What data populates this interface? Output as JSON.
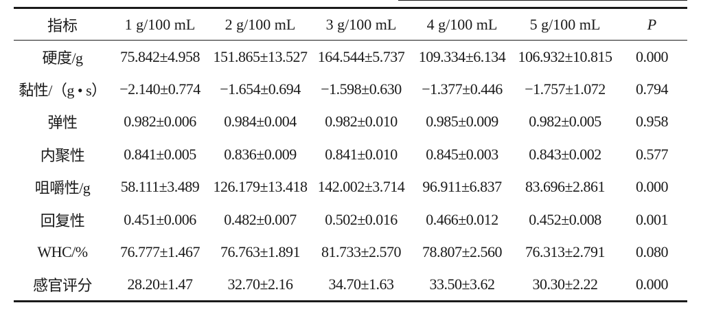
{
  "table": {
    "headers": [
      "指标",
      "1 g/100 mL",
      "2 g/100 mL",
      "3 g/100 mL",
      "4 g/100 mL",
      "5 g/100 mL",
      "P"
    ],
    "rows": [
      [
        "硬度/g",
        "75.842±4.958",
        "151.865±13.527",
        "164.544±5.737",
        "109.334±6.134",
        "106.932±10.815",
        "0.000"
      ],
      [
        "黏性/（g • s）",
        "−2.140±0.774",
        "−1.654±0.694",
        "−1.598±0.630",
        "−1.377±0.446",
        "−1.757±1.072",
        "0.794"
      ],
      [
        "弹性",
        "0.982±0.006",
        "0.984±0.004",
        "0.982±0.010",
        "0.985±0.009",
        "0.982±0.005",
        "0.958"
      ],
      [
        "内聚性",
        "0.841±0.005",
        "0.836±0.009",
        "0.841±0.010",
        "0.845±0.003",
        "0.843±0.002",
        "0.577"
      ],
      [
        "咀嚼性/g",
        "58.111±3.489",
        "126.179±13.418",
        "142.002±3.714",
        "96.911±6.837",
        "83.696±2.861",
        "0.000"
      ],
      [
        "回复性",
        "0.451±0.006",
        "0.482±0.007",
        "0.502±0.016",
        "0.466±0.012",
        "0.452±0.008",
        "0.001"
      ],
      [
        "WHC/%",
        "76.777±1.467",
        "76.763±1.891",
        "81.733±2.570",
        "78.807±2.560",
        "76.313±2.791",
        "0.080"
      ],
      [
        "感官评分",
        "28.20±1.47",
        "32.70±2.16",
        "34.70±1.63",
        "33.50±3.62",
        "30.30±2.22",
        "0.000"
      ]
    ]
  }
}
